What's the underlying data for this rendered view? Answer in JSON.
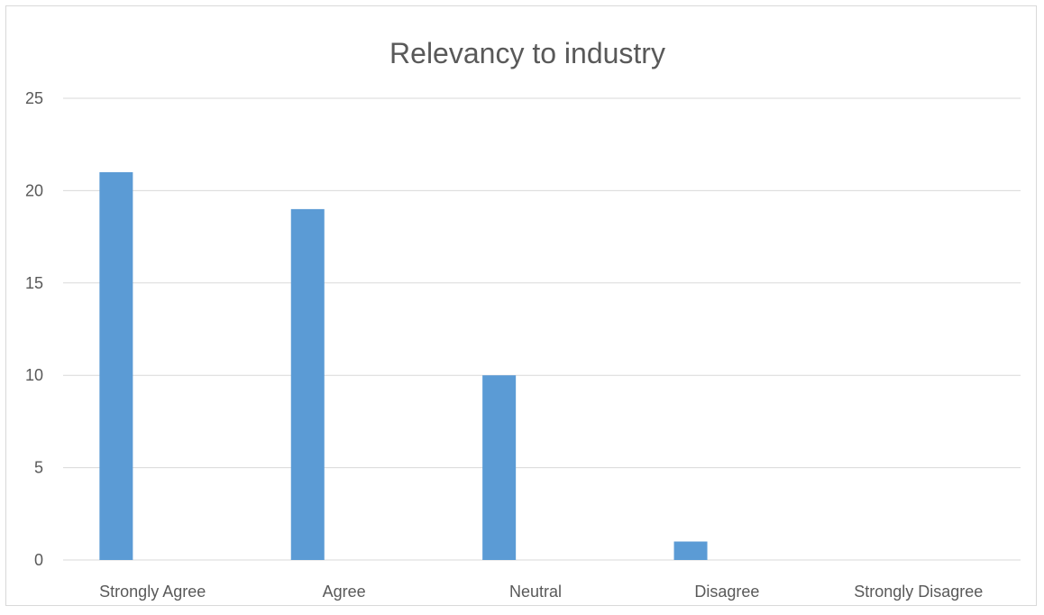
{
  "chart_data": {
    "type": "bar",
    "title": "Relevancy to industry",
    "categories": [
      "Strongly Agree",
      "Agree",
      "Neutral",
      "Disagree",
      "Strongly Disagree"
    ],
    "series": [
      {
        "values": [
          21,
          19,
          10,
          1,
          0
        ]
      }
    ],
    "xlabel": "",
    "ylabel": "",
    "ylim": [
      0,
      25
    ],
    "yticks": [
      0,
      5,
      10,
      15,
      20,
      25
    ],
    "grid": true,
    "legend": "none",
    "bar_color": "#5b9bd5"
  }
}
